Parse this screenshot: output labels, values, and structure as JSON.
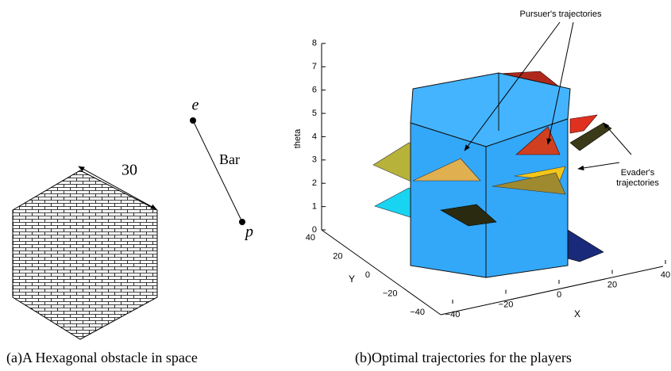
{
  "panel_a": {
    "edge_label": "30",
    "bar_label": "Bar",
    "point_e": "e",
    "point_p": "p",
    "caption": "(a)A Hexagonal obstacle in space"
  },
  "panel_b": {
    "pursuer_label": "Pursuer's trajectories",
    "evader_label": [
      "Evader's",
      "trajectories"
    ],
    "z_label": "theta",
    "y_label": "Y",
    "x_label": "X",
    "z_ticks": [
      "0",
      "1",
      "2",
      "3",
      "4",
      "5",
      "6",
      "7",
      "8"
    ],
    "y_ticks": [
      "40",
      "20",
      "0",
      "−20",
      "−40"
    ],
    "x_ticks": [
      "−40",
      "−20",
      "0",
      "20",
      "40"
    ],
    "caption": "(b)Optimal trajectories for the players"
  }
}
